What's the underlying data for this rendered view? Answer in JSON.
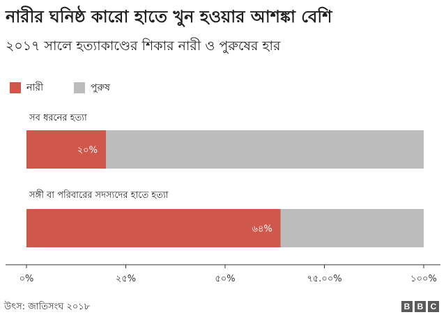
{
  "title": "নারীর ঘনিষ্ঠ কারো হাতে খুন হওয়ার আশঙ্কা বেশি",
  "subtitle": "২০১৭ সালে হত্যাকাণ্ডের শিকার নারী ও পুরুষের হার",
  "colors": {
    "women": "#d0574c",
    "men": "#bcbcbc",
    "axis": "#333333"
  },
  "legend": [
    {
      "label": "নারী",
      "color": "#d0574c"
    },
    {
      "label": "পুরুষ",
      "color": "#bcbcbc"
    }
  ],
  "chart_data": {
    "type": "bar",
    "orientation": "horizontal",
    "stacked": true,
    "categories": [
      "সব ধরনের হত্যা",
      "সঙ্গী বা পরিবারের সদস্যদের হাতে হত্যা"
    ],
    "series": [
      {
        "name": "নারী",
        "values": [
          20,
          64
        ],
        "data_labels": [
          "২০%",
          "৬৪%"
        ]
      },
      {
        "name": "পুরুষ",
        "values": [
          80,
          36
        ]
      }
    ],
    "xlim": [
      0,
      100
    ],
    "xticks": [
      0,
      25,
      50,
      75,
      100
    ],
    "xtick_labels": [
      "০%",
      "২৫%",
      "৫০%",
      "৭৫.০০%",
      "১০০%"
    ],
    "legend_position": "top-left",
    "grid": false
  },
  "footer": {
    "source": "উৎস: জাতিসংঘ ২০১৮",
    "logo_letters": [
      "B",
      "B",
      "C"
    ]
  }
}
